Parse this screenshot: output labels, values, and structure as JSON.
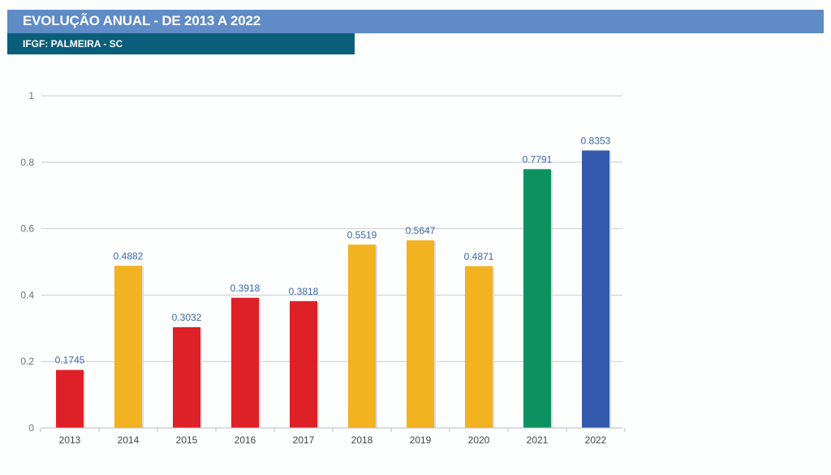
{
  "header": {
    "title": "EVOLUÇÃO ANUAL - DE 2013 A 2022",
    "subtitle": "IFGF: PALMEIRA - SC"
  },
  "chart_data": {
    "type": "bar",
    "title": "EVOLUÇÃO ANUAL - DE 2013 A 2022",
    "subtitle": "IFGF: PALMEIRA - SC",
    "xlabel": "",
    "ylabel": "",
    "ylim": [
      0,
      1
    ],
    "yticks": [
      0,
      0.2,
      0.4,
      0.6,
      0.8,
      1
    ],
    "ytick_labels": [
      "0",
      "0.2",
      "0.4",
      "0.6",
      "0.8",
      "1"
    ],
    "grid": true,
    "categories": [
      "2013",
      "2014",
      "2015",
      "2016",
      "2017",
      "2018",
      "2019",
      "2020",
      "2021",
      "2022"
    ],
    "values": [
      0.1745,
      0.4882,
      0.3032,
      0.3918,
      0.3818,
      0.5519,
      0.5647,
      0.4871,
      0.7791,
      0.8353
    ],
    "value_labels": [
      "0.1745",
      "0.4882",
      "0.3032",
      "0.3918",
      "0.3818",
      "0.5519",
      "0.5647",
      "0.4871",
      "0.7791",
      "0.8353"
    ],
    "bar_colors": [
      "#de2127",
      "#f3b21f",
      "#de2127",
      "#de2127",
      "#de2127",
      "#f3b21f",
      "#f3b21f",
      "#f3b21f",
      "#0e9161",
      "#3259ac"
    ],
    "value_label_color": "#3a67a8"
  }
}
